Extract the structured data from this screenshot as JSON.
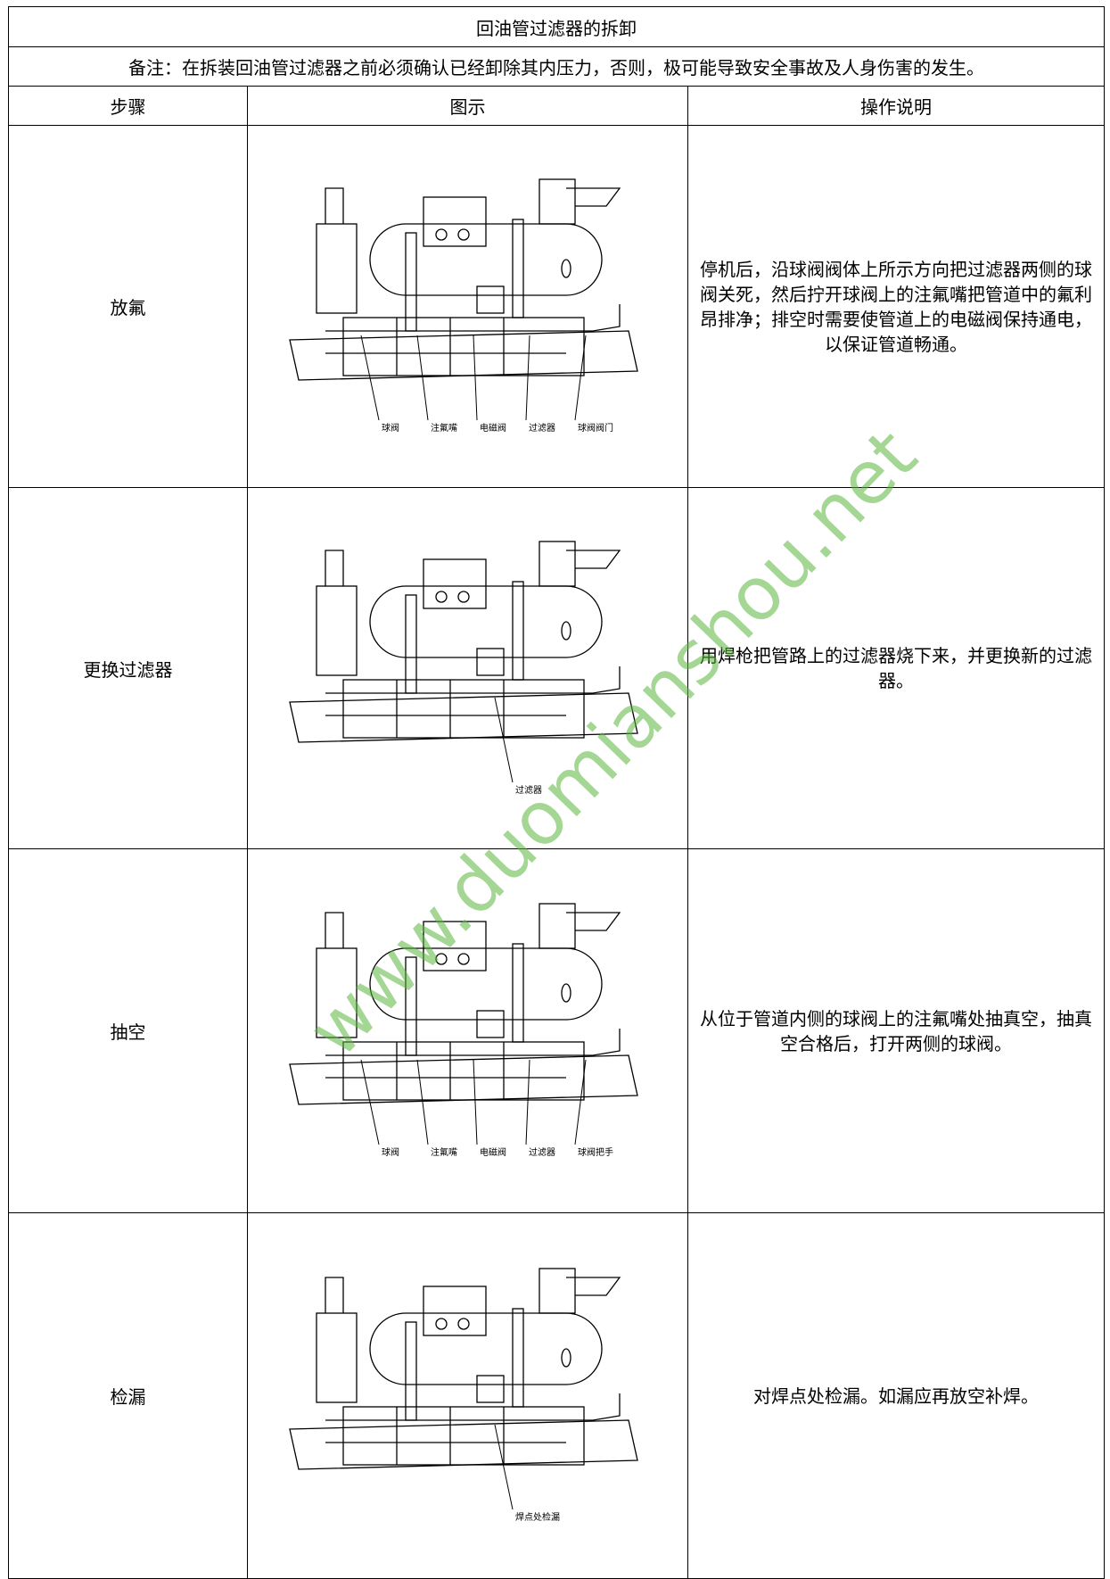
{
  "header": {
    "title": "回油管过滤器的拆卸",
    "note": "备注：在拆装回油管过滤器之前必须确认已经卸除其内压力，否则，极可能导致安全事故及人身伤害的发生。"
  },
  "columns": [
    "步骤",
    "图示",
    "操作说明"
  ],
  "rows": [
    {
      "step": "放氟",
      "labels": [
        "球阀",
        "注氟嘴",
        "电磁阀",
        "过滤器",
        "球阀阀门"
      ],
      "description": "停机后，沿球阀阀体上所示方向把过滤器两侧的球阀关死，然后拧开球阀上的注氟嘴把管道中的氟利昂排净；排空时需要使管道上的电磁阀保持通电，以保证管道畅通。"
    },
    {
      "step": "更换过滤器",
      "labels": [
        "过滤器"
      ],
      "description": "用焊枪把管路上的过滤器烧下来，并更换新的过滤器。"
    },
    {
      "step": "抽空",
      "labels": [
        "球阀",
        "注氟嘴",
        "电磁阀",
        "过滤器",
        "球阀把手"
      ],
      "description": "从位于管道内侧的球阀上的注氟嘴处抽真空，抽真空合格后，打开两侧的球阀。"
    },
    {
      "step": "检漏",
      "labels": [
        "焊点处检漏"
      ],
      "description": "对焊点处检漏。如漏应再放空补焊。"
    }
  ],
  "watermark": "www.duomianshou.net"
}
